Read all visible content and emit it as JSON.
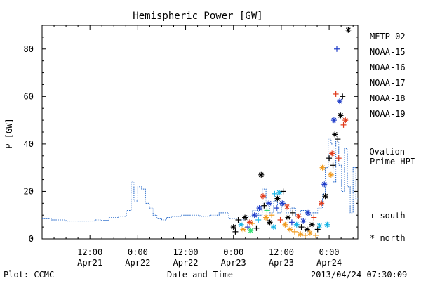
{
  "chart_data": {
    "type": "scatter",
    "title": "Hemispheric Power [GW]",
    "xlabel": "Date and Time",
    "ylabel": "P [GW]",
    "ylim": [
      0,
      90
    ],
    "y_ticks": [
      0,
      20,
      40,
      60,
      80
    ],
    "x_ticks": [
      {
        "day": 0.5,
        "time": "12:00",
        "date": "Apr21"
      },
      {
        "day": 1.0,
        "time": "0:00",
        "date": "Apr22"
      },
      {
        "day": 1.5,
        "time": "12:00",
        "date": "Apr22"
      },
      {
        "day": 2.0,
        "time": "0:00",
        "date": "Apr23"
      },
      {
        "day": 2.5,
        "time": "12:00",
        "date": "Apr23"
      },
      {
        "day": 3.0,
        "time": "0:00",
        "date": "Apr24"
      }
    ],
    "xlim_days": [
      0.0,
      3.3
    ],
    "legend": {
      "placement": "right",
      "satellites": [
        {
          "name": "METP-02",
          "color": "#000000"
        },
        {
          "name": "NOAA-15",
          "color": "#1e3cc8"
        },
        {
          "name": "NOAA-16",
          "color": "#18b4e6"
        },
        {
          "name": "NOAA-17",
          "color": "#2ee070"
        },
        {
          "name": "NOAA-18",
          "color": "#f09a1e"
        },
        {
          "name": "NOAA-19",
          "color": "#e03a1a"
        }
      ],
      "ovation_label": "— Ovation",
      "ovation_label2": "Prime HPI",
      "ovation_color": "#1f64c8",
      "south_label": "+ south",
      "north_label": "* north"
    },
    "footer": {
      "left": "Plot: CCMC",
      "right": "2013/04/24 07:30:09"
    },
    "ovation_series": [
      [
        0.0,
        8.5
      ],
      [
        0.1,
        8.0
      ],
      [
        0.25,
        7.5
      ],
      [
        0.4,
        7.5
      ],
      [
        0.55,
        8.0
      ],
      [
        0.62,
        7.8
      ],
      [
        0.7,
        9.0
      ],
      [
        0.8,
        9.5
      ],
      [
        0.88,
        12.0
      ],
      [
        0.93,
        24.0
      ],
      [
        0.96,
        16.0
      ],
      [
        1.0,
        22.0
      ],
      [
        1.04,
        21.0
      ],
      [
        1.08,
        15.0
      ],
      [
        1.12,
        13.0
      ],
      [
        1.16,
        10.0
      ],
      [
        1.2,
        8.5
      ],
      [
        1.25,
        8.0
      ],
      [
        1.3,
        9.0
      ],
      [
        1.35,
        9.5
      ],
      [
        1.45,
        10.0
      ],
      [
        1.55,
        10.0
      ],
      [
        1.65,
        9.5
      ],
      [
        1.75,
        10.0
      ],
      [
        1.85,
        11.0
      ],
      [
        1.95,
        8.5
      ],
      [
        2.05,
        8.0
      ],
      [
        2.12,
        9.5
      ],
      [
        2.2,
        12.0
      ],
      [
        2.26,
        10.0
      ],
      [
        2.3,
        21.0
      ],
      [
        2.34,
        15.0
      ],
      [
        2.38,
        11.0
      ],
      [
        2.42,
        16.0
      ],
      [
        2.46,
        11.0
      ],
      [
        2.5,
        15.0
      ],
      [
        2.55,
        11.0
      ],
      [
        2.6,
        13.0
      ],
      [
        2.65,
        10.0
      ],
      [
        2.7,
        12.0
      ],
      [
        2.76,
        10.0
      ],
      [
        2.82,
        11.0
      ],
      [
        2.88,
        13.0
      ],
      [
        2.93,
        19.0
      ],
      [
        2.96,
        30.0
      ],
      [
        2.99,
        42.0
      ],
      [
        3.02,
        40.0
      ],
      [
        3.04,
        24.0
      ],
      [
        3.07,
        41.0
      ],
      [
        3.1,
        31.0
      ],
      [
        3.13,
        20.0
      ],
      [
        3.16,
        38.0
      ],
      [
        3.19,
        22.0
      ],
      [
        3.22,
        11.0
      ],
      [
        3.25,
        30.0
      ],
      [
        3.28,
        17.0
      ]
    ],
    "points": [
      {
        "x": 2.0,
        "y": 5.0,
        "sat": 0,
        "hemi": "north"
      },
      {
        "x": 2.02,
        "y": 3.0,
        "sat": 0,
        "hemi": "south"
      },
      {
        "x": 2.05,
        "y": 8.0,
        "sat": 0,
        "hemi": "south"
      },
      {
        "x": 2.08,
        "y": 6.0,
        "sat": 2,
        "hemi": "north"
      },
      {
        "x": 2.1,
        "y": 4.0,
        "sat": 4,
        "hemi": "north"
      },
      {
        "x": 2.12,
        "y": 9.0,
        "sat": 0,
        "hemi": "north"
      },
      {
        "x": 2.15,
        "y": 5.0,
        "sat": 1,
        "hemi": "south"
      },
      {
        "x": 2.17,
        "y": 7.0,
        "sat": 5,
        "hemi": "north"
      },
      {
        "x": 2.18,
        "y": 3.5,
        "sat": 3,
        "hemi": "north"
      },
      {
        "x": 2.2,
        "y": 6.5,
        "sat": 4,
        "hemi": "south"
      },
      {
        "x": 2.22,
        "y": 10.0,
        "sat": 1,
        "hemi": "north"
      },
      {
        "x": 2.24,
        "y": 4.5,
        "sat": 0,
        "hemi": "south"
      },
      {
        "x": 2.26,
        "y": 8.0,
        "sat": 2,
        "hemi": "south"
      },
      {
        "x": 2.27,
        "y": 13.0,
        "sat": 1,
        "hemi": "north"
      },
      {
        "x": 2.29,
        "y": 27.0,
        "sat": 0,
        "hemi": "north"
      },
      {
        "x": 2.31,
        "y": 18.0,
        "sat": 5,
        "hemi": "north"
      },
      {
        "x": 2.32,
        "y": 14.0,
        "sat": 0,
        "hemi": "south"
      },
      {
        "x": 2.34,
        "y": 9.0,
        "sat": 4,
        "hemi": "north"
      },
      {
        "x": 2.35,
        "y": 12.0,
        "sat": 3,
        "hemi": "south"
      },
      {
        "x": 2.37,
        "y": 15.0,
        "sat": 1,
        "hemi": "north"
      },
      {
        "x": 2.38,
        "y": 7.0,
        "sat": 0,
        "hemi": "north"
      },
      {
        "x": 2.4,
        "y": 10.0,
        "sat": 4,
        "hemi": "south"
      },
      {
        "x": 2.42,
        "y": 5.0,
        "sat": 2,
        "hemi": "north"
      },
      {
        "x": 2.43,
        "y": 19.0,
        "sat": 2,
        "hemi": "south"
      },
      {
        "x": 2.45,
        "y": 13.0,
        "sat": 1,
        "hemi": "south"
      },
      {
        "x": 2.46,
        "y": 17.0,
        "sat": 0,
        "hemi": "north"
      },
      {
        "x": 2.48,
        "y": 19.5,
        "sat": 2,
        "hemi": "north"
      },
      {
        "x": 2.49,
        "y": 8.0,
        "sat": 5,
        "hemi": "south"
      },
      {
        "x": 2.51,
        "y": 15.0,
        "sat": 1,
        "hemi": "north"
      },
      {
        "x": 2.52,
        "y": 20.0,
        "sat": 0,
        "hemi": "south"
      },
      {
        "x": 2.54,
        "y": 6.0,
        "sat": 4,
        "hemi": "north"
      },
      {
        "x": 2.56,
        "y": 13.5,
        "sat": 5,
        "hemi": "north"
      },
      {
        "x": 2.57,
        "y": 9.0,
        "sat": 0,
        "hemi": "north"
      },
      {
        "x": 2.59,
        "y": 4.0,
        "sat": 4,
        "hemi": "north"
      },
      {
        "x": 2.61,
        "y": 7.0,
        "sat": 1,
        "hemi": "south"
      },
      {
        "x": 2.62,
        "y": 11.0,
        "sat": 0,
        "hemi": "south"
      },
      {
        "x": 2.64,
        "y": 3.0,
        "sat": 4,
        "hemi": "south"
      },
      {
        "x": 2.66,
        "y": 6.0,
        "sat": 2,
        "hemi": "north"
      },
      {
        "x": 2.68,
        "y": 9.5,
        "sat": 5,
        "hemi": "north"
      },
      {
        "x": 2.7,
        "y": 2.0,
        "sat": 4,
        "hemi": "north"
      },
      {
        "x": 2.71,
        "y": 5.0,
        "sat": 0,
        "hemi": "south"
      },
      {
        "x": 2.73,
        "y": 7.5,
        "sat": 1,
        "hemi": "north"
      },
      {
        "x": 2.75,
        "y": 1.5,
        "sat": 4,
        "hemi": "south"
      },
      {
        "x": 2.77,
        "y": 4.0,
        "sat": 0,
        "hemi": "north"
      },
      {
        "x": 2.78,
        "y": 11.0,
        "sat": 1,
        "hemi": "north"
      },
      {
        "x": 2.8,
        "y": 2.5,
        "sat": 4,
        "hemi": "north"
      },
      {
        "x": 2.82,
        "y": 6.0,
        "sat": 0,
        "hemi": "north"
      },
      {
        "x": 2.84,
        "y": 9.0,
        "sat": 5,
        "hemi": "south"
      },
      {
        "x": 2.86,
        "y": 1.5,
        "sat": 4,
        "hemi": "south"
      },
      {
        "x": 2.88,
        "y": 4.0,
        "sat": 0,
        "hemi": "south"
      },
      {
        "x": 2.9,
        "y": 5.5,
        "sat": 2,
        "hemi": "north"
      },
      {
        "x": 2.92,
        "y": 15.0,
        "sat": 5,
        "hemi": "north"
      },
      {
        "x": 2.93,
        "y": 30.0,
        "sat": 4,
        "hemi": "north"
      },
      {
        "x": 2.95,
        "y": 23.0,
        "sat": 1,
        "hemi": "north"
      },
      {
        "x": 2.96,
        "y": 18.0,
        "sat": 0,
        "hemi": "north"
      },
      {
        "x": 2.98,
        "y": 6.0,
        "sat": 2,
        "hemi": "north"
      },
      {
        "x": 3.0,
        "y": 34.0,
        "sat": 0,
        "hemi": "south"
      },
      {
        "x": 3.02,
        "y": 27.0,
        "sat": 4,
        "hemi": "north"
      },
      {
        "x": 3.03,
        "y": 36.0,
        "sat": 5,
        "hemi": "north"
      },
      {
        "x": 3.04,
        "y": 31.0,
        "sat": 0,
        "hemi": "south"
      },
      {
        "x": 3.05,
        "y": 50.0,
        "sat": 1,
        "hemi": "north"
      },
      {
        "x": 3.06,
        "y": 44.0,
        "sat": 0,
        "hemi": "north"
      },
      {
        "x": 3.07,
        "y": 61.0,
        "sat": 5,
        "hemi": "south"
      },
      {
        "x": 3.08,
        "y": 80.0,
        "sat": 1,
        "hemi": "south"
      },
      {
        "x": 3.09,
        "y": 42.0,
        "sat": 0,
        "hemi": "south"
      },
      {
        "x": 3.1,
        "y": 34.0,
        "sat": 5,
        "hemi": "south"
      },
      {
        "x": 3.11,
        "y": 58.0,
        "sat": 1,
        "hemi": "north"
      },
      {
        "x": 3.12,
        "y": 52.0,
        "sat": 0,
        "hemi": "north"
      },
      {
        "x": 3.14,
        "y": 60.0,
        "sat": 0,
        "hemi": "south"
      },
      {
        "x": 3.15,
        "y": 48.0,
        "sat": 5,
        "hemi": "south"
      },
      {
        "x": 3.17,
        "y": 50.0,
        "sat": 5,
        "hemi": "north"
      },
      {
        "x": 3.2,
        "y": 88.0,
        "sat": 0,
        "hemi": "north"
      }
    ]
  }
}
